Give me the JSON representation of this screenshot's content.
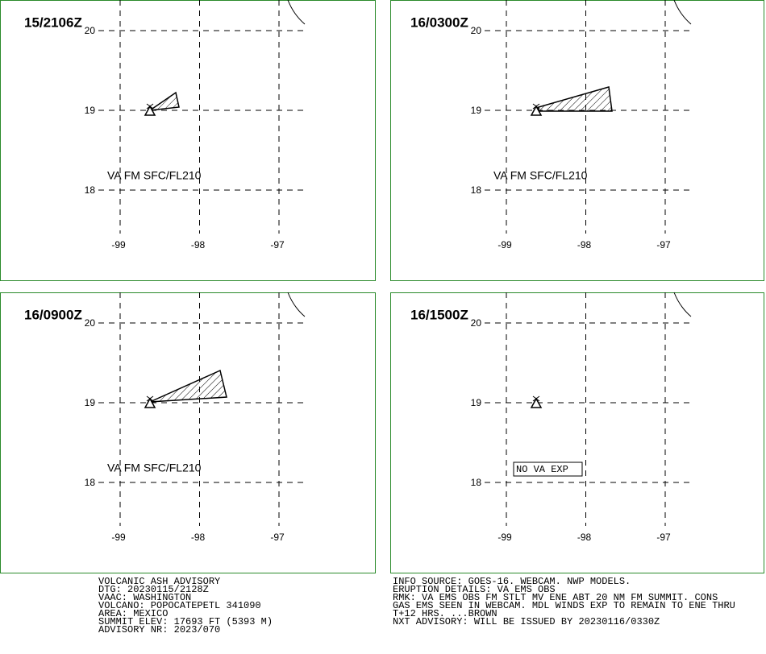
{
  "panels": [
    {
      "time": "15/2106Z",
      "annotation": "VA FM SFC/FL210"
    },
    {
      "time": "16/0300Z",
      "annotation": "VA FM SFC/FL210"
    },
    {
      "time": "16/0900Z",
      "annotation": "VA FM SFC/FL210"
    },
    {
      "time": "16/1500Z",
      "annotation": "NO VA EXP"
    }
  ],
  "grid": {
    "lat": [
      20,
      19,
      18
    ],
    "lon": [
      -99,
      -98,
      -97
    ]
  },
  "advisory": {
    "left": [
      "VOLCANIC ASH ADVISORY",
      "DTG: 20230115/2128Z",
      "VAAC: WASHINGTON",
      "VOLCANO: POPOCATEPETL 341090",
      "AREA: MEXICO",
      "SUMMIT ELEV: 17693 FT (5393 M)",
      "ADVISORY NR: 2023/070"
    ],
    "right": [
      "INFO SOURCE: GOES-16. WEBCAM. NWP MODELS.",
      "ERUPTION DETAILS: VA EMS OBS",
      "RMK: VA EMS OBS FM STLT MV ENE ABT 20 NM FM SUMMIT. CONS",
      "GAS EMS SEEN IN WEBCAM. MDL WINDS EXP TO REMAIN TO ENE THRU",
      "T+12 HRS. ...BROWN",
      "NXT ADVISORY: WILL BE ISSUED BY 20230116/0330Z"
    ]
  }
}
